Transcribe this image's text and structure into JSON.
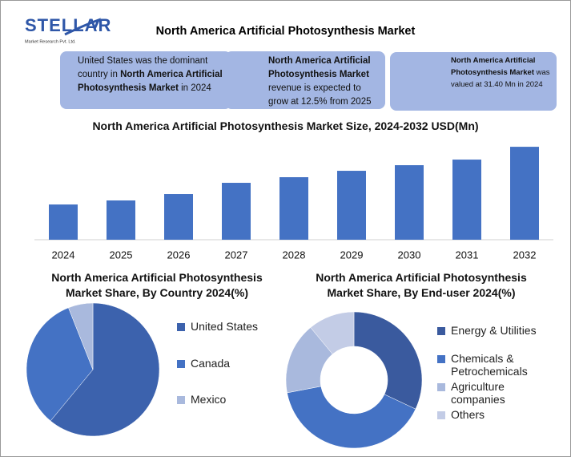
{
  "header": {
    "logo": "STELLAR",
    "logo_tagline": "Market Research Pvt. Ltd.",
    "title": "North America Artificial Photosynthesis Market"
  },
  "info_boxes": [
    [
      {
        "text": "United States was the dominant country in ",
        "bold": false
      },
      {
        "text": "North America Artificial Photosynthesis Market",
        "bold": true
      },
      {
        "text": " in 2024",
        "bold": false
      }
    ],
    [
      {
        "text": "North America Artificial Photosynthesis Market",
        "bold": true
      },
      {
        "text": " revenue is expected to grow at 12.5% from 2025",
        "bold": false
      }
    ],
    [
      {
        "text": "North America Artificial Photosynthesis Market",
        "bold": true
      },
      {
        "text": " was valued at 31.40 Mn in 2024",
        "bold": false
      }
    ]
  ],
  "chart_data": [
    {
      "type": "bar",
      "title": "North America Artificial Photosynthesis Market Size, 2024-2032 USD(Mn)",
      "categories": [
        "2024",
        "2025",
        "2026",
        "2027",
        "2028",
        "2029",
        "2030",
        "2031",
        "2032"
      ],
      "values": [
        31.4,
        35,
        40.7,
        50.7,
        55.7,
        61.4,
        66.4,
        71.4,
        82.8
      ],
      "color": "#4472c4",
      "ylim": [
        0,
        90
      ]
    },
    {
      "type": "pie",
      "title": "North America Artificial Photosynthesis Market Share, By Country 2024(%)",
      "categories": [
        "United States",
        "Canada",
        "Mexico"
      ],
      "values": [
        61,
        33,
        6
      ],
      "colors": [
        "#3c62ad",
        "#4472c4",
        "#a9b9dd"
      ]
    },
    {
      "type": "donut",
      "title": "North America Artificial Photosynthesis Market Share, By End-user 2024(%)",
      "categories": [
        "Energy & Utilities",
        "Chemicals & Petrochemicals",
        "Agriculture companies",
        "Others"
      ],
      "values": [
        32,
        40,
        17,
        11
      ],
      "colors": [
        "#3a5a9e",
        "#4472c4",
        "#a9b9dd",
        "#c3cce6"
      ]
    }
  ]
}
